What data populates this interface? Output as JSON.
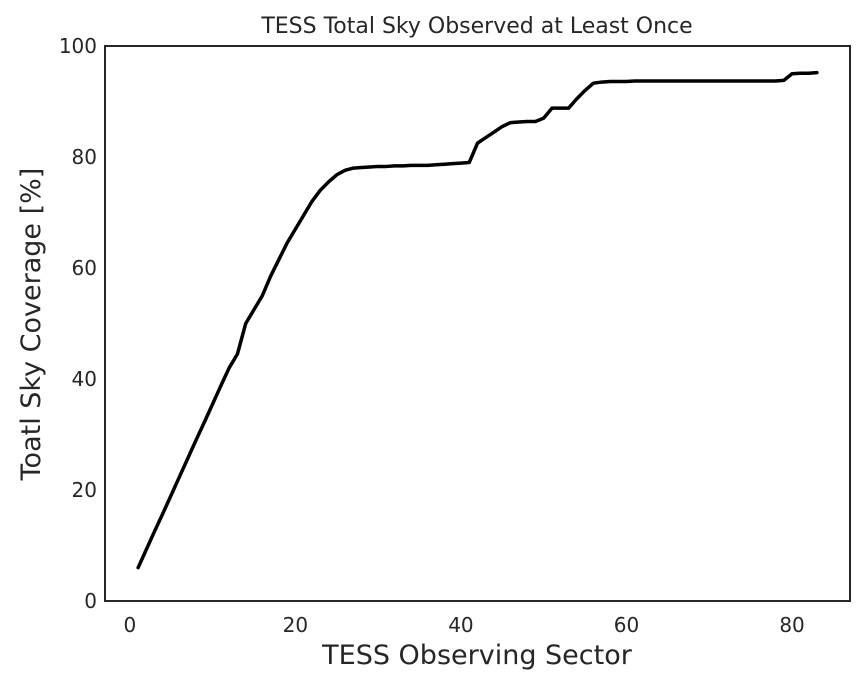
{
  "chart_data": {
    "type": "line",
    "title": "TESS Total Sky Observed at Least Once",
    "xlabel": "TESS Observing Sector",
    "ylabel": "Toatl Sky Coverage [%]",
    "xlim": [
      -3,
      87
    ],
    "ylim": [
      0,
      100
    ],
    "xticks": [
      0,
      20,
      40,
      60,
      80
    ],
    "yticks": [
      0,
      20,
      40,
      60,
      80,
      100
    ],
    "grid": false,
    "series": [
      {
        "color": "#000000",
        "x": [
          1,
          2,
          3,
          4,
          5,
          6,
          7,
          8,
          9,
          10,
          11,
          12,
          13,
          14,
          15,
          16,
          17,
          18,
          19,
          20,
          21,
          22,
          23,
          24,
          25,
          26,
          27,
          28,
          29,
          30,
          31,
          32,
          33,
          34,
          35,
          36,
          37,
          38,
          39,
          40,
          41,
          42,
          43,
          44,
          45,
          46,
          47,
          48,
          49,
          50,
          51,
          52,
          53,
          54,
          55,
          56,
          57,
          58,
          59,
          60,
          61,
          62,
          63,
          64,
          65,
          66,
          67,
          68,
          69,
          70,
          71,
          72,
          73,
          74,
          75,
          76,
          77,
          78,
          79,
          80,
          81,
          82,
          83
        ],
        "values": [
          6.0,
          9.3,
          12.6,
          15.8,
          19.1,
          22.4,
          25.7,
          29.0,
          32.2,
          35.5,
          38.8,
          42.0,
          44.5,
          50.0,
          52.5,
          55.0,
          58.5,
          61.5,
          64.5,
          67.0,
          69.5,
          72.0,
          74.0,
          75.5,
          76.8,
          77.6,
          78.0,
          78.1,
          78.2,
          78.3,
          78.3,
          78.4,
          78.4,
          78.5,
          78.5,
          78.5,
          78.6,
          78.7,
          78.8,
          78.9,
          79.0,
          82.5,
          83.5,
          84.5,
          85.5,
          86.2,
          86.3,
          86.4,
          86.4,
          87.0,
          88.8,
          88.8,
          88.8,
          90.5,
          92.0,
          93.3,
          93.5,
          93.6,
          93.6,
          93.6,
          93.7,
          93.7,
          93.7,
          93.7,
          93.7,
          93.7,
          93.7,
          93.7,
          93.7,
          93.7,
          93.7,
          93.7,
          93.7,
          93.7,
          93.7,
          93.7,
          93.7,
          93.7,
          93.8,
          95.0,
          95.1,
          95.1,
          95.2
        ]
      }
    ]
  }
}
